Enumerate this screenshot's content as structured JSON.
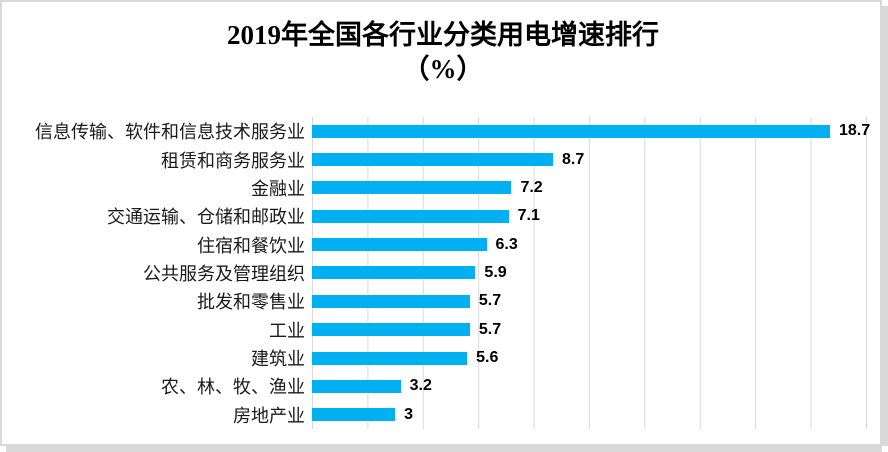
{
  "chart_data": {
    "type": "bar",
    "orientation": "horizontal",
    "title": "2019年全国各行业分类用电增速排行",
    "subtitle": "（%）",
    "categories": [
      "信息传输、软件和信息技术服务业",
      "租赁和商务服务业",
      "金融业",
      "交通运输、仓储和邮政业",
      "住宿和餐饮业",
      "公共服务及管理组织",
      "批发和零售业",
      "工业",
      "建筑业",
      "农、林、牧、渔业",
      "房地产业"
    ],
    "values": [
      18.7,
      8.7,
      7.2,
      7.1,
      6.3,
      5.9,
      5.7,
      5.7,
      5.6,
      3.2,
      3
    ],
    "value_labels": [
      "18.7",
      "8.7",
      "7.2",
      "7.1",
      "6.3",
      "5.9",
      "5.7",
      "5.7",
      "5.6",
      "3.2",
      "3"
    ],
    "xlabel": "",
    "ylabel": "",
    "xlim": [
      0,
      20
    ],
    "gridline_step": 2,
    "grid": true,
    "legend": false,
    "axis_tick_labels_visible": false,
    "colors": {
      "bar": "#00B0F0",
      "gridline": "#D9D9D9",
      "border": "#D9D9D9",
      "shadow": "#D9D9D9",
      "title_text": "#000000",
      "label_text": "#1A1A1A"
    }
  }
}
